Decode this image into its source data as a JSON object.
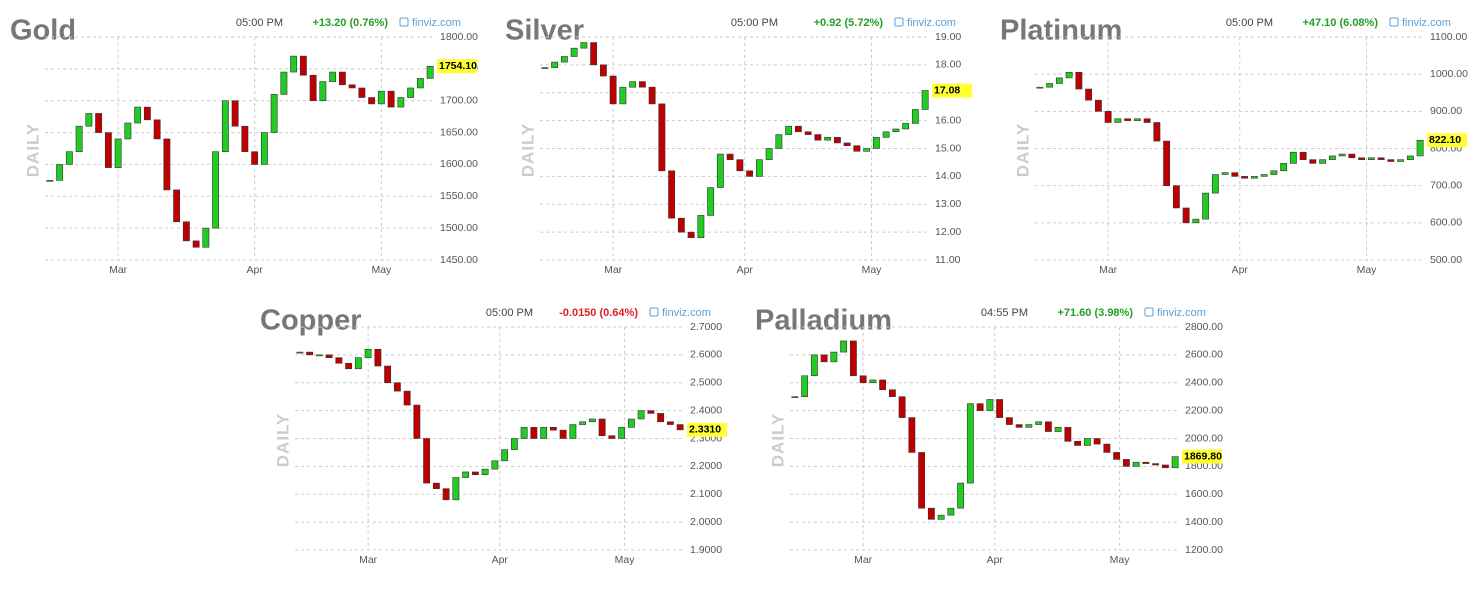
{
  "chart_data": [
    {
      "type": "candlestick",
      "title": "Gold",
      "side_label": "DAILY",
      "time": "05:00 PM",
      "change": "+13.20 (0.76%)",
      "change_color": "#22a022",
      "source": "finviz.com",
      "last_label": "1754.10",
      "up_color": "#22cc22",
      "down_color": "#c00000",
      "grid": true,
      "closes": [
        1575,
        1600,
        1620,
        1660,
        1680,
        1650,
        1595,
        1640,
        1665,
        1690,
        1670,
        1640,
        1560,
        1510,
        1480,
        1470,
        1500,
        1620,
        1700,
        1660,
        1620,
        1600,
        1650,
        1710,
        1745,
        1770,
        1740,
        1700,
        1730,
        1745,
        1725,
        1720,
        1705,
        1695,
        1715,
        1690,
        1705,
        1720,
        1735,
        1754.1
      ],
      "xlim": [
        -0.5,
        39.5
      ],
      "xticks": [
        {
          "value": 7,
          "label": "Mar"
        },
        {
          "value": 21,
          "label": "Apr"
        },
        {
          "value": 34,
          "label": "May"
        }
      ],
      "ylim": [
        1450,
        1800
      ],
      "yticks": [
        {
          "value": 1450,
          "label": "1450.00"
        },
        {
          "value": 1500,
          "label": "1500.00"
        },
        {
          "value": 1550,
          "label": "1550.00"
        },
        {
          "value": 1600,
          "label": "1600.00"
        },
        {
          "value": 1650,
          "label": "1650.00"
        },
        {
          "value": 1700,
          "label": "1700.00"
        },
        {
          "value": 1750,
          "label": "1750.00"
        },
        {
          "value": 1800,
          "label": "1800.00"
        }
      ]
    },
    {
      "type": "candlestick",
      "title": "Silver",
      "side_label": "DAILY",
      "time": "05:00 PM",
      "change": "+0.92 (5.72%)",
      "change_color": "#22a022",
      "source": "finviz.com",
      "last_label": "17.08",
      "up_color": "#22cc22",
      "down_color": "#c00000",
      "grid": true,
      "closes": [
        17.9,
        18.1,
        18.3,
        18.6,
        18.8,
        18.0,
        17.6,
        16.6,
        17.2,
        17.4,
        17.2,
        16.6,
        14.2,
        12.5,
        12.0,
        11.8,
        12.6,
        13.6,
        14.8,
        14.6,
        14.2,
        14.0,
        14.6,
        15.0,
        15.5,
        15.8,
        15.6,
        15.5,
        15.3,
        15.4,
        15.2,
        15.1,
        14.9,
        15.0,
        15.4,
        15.6,
        15.7,
        15.9,
        16.4,
        17.08
      ],
      "xlim": [
        -0.5,
        39.5
      ],
      "xticks": [
        {
          "value": 7,
          "label": "Mar"
        },
        {
          "value": 20.5,
          "label": "Apr"
        },
        {
          "value": 33.5,
          "label": "May"
        }
      ],
      "ylim": [
        11,
        19
      ],
      "yticks": [
        {
          "value": 11,
          "label": "11.00"
        },
        {
          "value": 12,
          "label": "12.00"
        },
        {
          "value": 13,
          "label": "13.00"
        },
        {
          "value": 14,
          "label": "14.00"
        },
        {
          "value": 15,
          "label": "15.00"
        },
        {
          "value": 16,
          "label": "16.00"
        },
        {
          "value": 17,
          "label": "17.00"
        },
        {
          "value": 18,
          "label": "18.00"
        },
        {
          "value": 19,
          "label": "19.00"
        }
      ]
    },
    {
      "type": "candlestick",
      "title": "Platinum",
      "side_label": "DAILY",
      "time": "05:00 PM",
      "change": "+47.10 (6.08%)",
      "change_color": "#22a022",
      "source": "finviz.com",
      "last_label": "822.10",
      "up_color": "#22cc22",
      "down_color": "#c00000",
      "grid": true,
      "closes": [
        965,
        975,
        990,
        1005,
        960,
        930,
        900,
        870,
        880,
        875,
        880,
        870,
        820,
        700,
        640,
        600,
        610,
        680,
        730,
        735,
        725,
        720,
        725,
        730,
        740,
        760,
        790,
        770,
        760,
        770,
        780,
        785,
        775,
        770,
        775,
        770,
        765,
        770,
        780,
        822.1
      ],
      "xlim": [
        -0.5,
        39.5
      ],
      "xticks": [
        {
          "value": 7,
          "label": "Mar"
        },
        {
          "value": 20.5,
          "label": "Apr"
        },
        {
          "value": 33.5,
          "label": "May"
        }
      ],
      "ylim": [
        500,
        1100
      ],
      "yticks": [
        {
          "value": 500,
          "label": "500.00"
        },
        {
          "value": 600,
          "label": "600.00"
        },
        {
          "value": 700,
          "label": "700.00"
        },
        {
          "value": 800,
          "label": "800.00"
        },
        {
          "value": 900,
          "label": "900.00"
        },
        {
          "value": 1000,
          "label": "1000.00"
        },
        {
          "value": 1100,
          "label": "1100.00"
        }
      ]
    },
    {
      "type": "candlestick",
      "title": "Copper",
      "side_label": "DAILY",
      "time": "05:00 PM",
      "change": "-0.0150 (0.64%)",
      "change_color": "#e02020",
      "source": "finviz.com",
      "last_label": "2.3310",
      "up_color": "#22cc22",
      "down_color": "#c00000",
      "grid": true,
      "closes": [
        2.61,
        2.6,
        2.6,
        2.59,
        2.57,
        2.55,
        2.59,
        2.62,
        2.56,
        2.5,
        2.47,
        2.42,
        2.3,
        2.14,
        2.12,
        2.08,
        2.16,
        2.18,
        2.17,
        2.19,
        2.22,
        2.26,
        2.3,
        2.34,
        2.3,
        2.34,
        2.33,
        2.3,
        2.35,
        2.36,
        2.37,
        2.31,
        2.3,
        2.34,
        2.37,
        2.4,
        2.39,
        2.36,
        2.35,
        2.331
      ],
      "xlim": [
        -0.5,
        39.5
      ],
      "xticks": [
        {
          "value": 7,
          "label": "Mar"
        },
        {
          "value": 20.5,
          "label": "Apr"
        },
        {
          "value": 33.3,
          "label": "May"
        }
      ],
      "ylim": [
        1.9,
        2.7
      ],
      "yticks": [
        {
          "value": 1.9,
          "label": "1.9000"
        },
        {
          "value": 2.0,
          "label": "2.0000"
        },
        {
          "value": 2.1,
          "label": "2.1000"
        },
        {
          "value": 2.2,
          "label": "2.2000"
        },
        {
          "value": 2.3,
          "label": "2.3000"
        },
        {
          "value": 2.4,
          "label": "2.4000"
        },
        {
          "value": 2.5,
          "label": "2.5000"
        },
        {
          "value": 2.6,
          "label": "2.6000"
        },
        {
          "value": 2.7,
          "label": "2.7000"
        }
      ]
    },
    {
      "type": "candlestick",
      "title": "Palladium",
      "side_label": "DAILY",
      "time": "04:55 PM",
      "change": "+71.60 (3.98%)",
      "change_color": "#22a022",
      "source": "finviz.com",
      "last_label": "1869.80",
      "up_color": "#22cc22",
      "down_color": "#c00000",
      "grid": true,
      "closes": [
        2300,
        2450,
        2600,
        2550,
        2620,
        2700,
        2450,
        2400,
        2420,
        2350,
        2300,
        2150,
        1900,
        1500,
        1420,
        1450,
        1500,
        1680,
        2250,
        2200,
        2280,
        2150,
        2100,
        2080,
        2100,
        2120,
        2050,
        2080,
        1980,
        1950,
        2000,
        1960,
        1900,
        1850,
        1800,
        1830,
        1820,
        1810,
        1790,
        1869.8
      ],
      "xlim": [
        -0.5,
        39.5
      ],
      "xticks": [
        {
          "value": 7,
          "label": "Mar"
        },
        {
          "value": 20.5,
          "label": "Apr"
        },
        {
          "value": 33.3,
          "label": "May"
        }
      ],
      "ylim": [
        1200,
        2800
      ],
      "yticks": [
        {
          "value": 1200,
          "label": "1200.00"
        },
        {
          "value": 1400,
          "label": "1400.00"
        },
        {
          "value": 1600,
          "label": "1600.00"
        },
        {
          "value": 1800,
          "label": "1800.00"
        },
        {
          "value": 2000,
          "label": "2000.00"
        },
        {
          "value": 2200,
          "label": "2200.00"
        },
        {
          "value": 2400,
          "label": "2400.00"
        },
        {
          "value": 2600,
          "label": "2600.00"
        },
        {
          "value": 2800,
          "label": "2800.00"
        }
      ]
    }
  ]
}
